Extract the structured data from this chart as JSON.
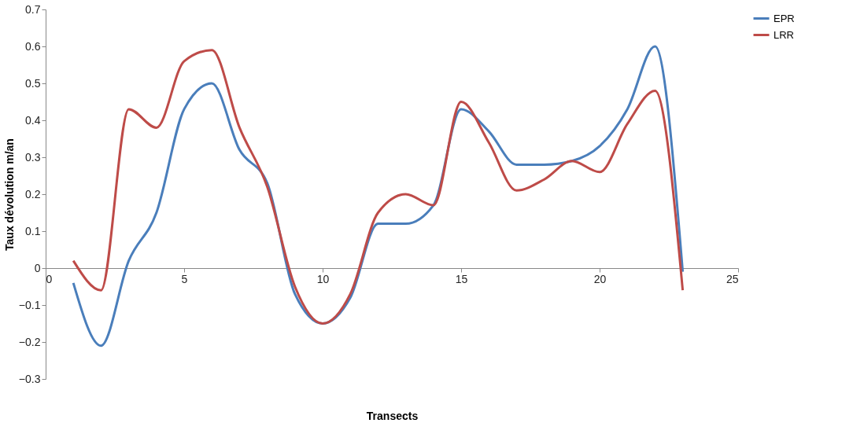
{
  "chart_data": {
    "type": "line",
    "xlabel": "Transects",
    "ylabel": "Taux dévolution m/an",
    "x": [
      1,
      2,
      3,
      4,
      5,
      6,
      7,
      8,
      9,
      10,
      11,
      12,
      13,
      14,
      15,
      16,
      17,
      18,
      19,
      20,
      21,
      22,
      23
    ],
    "series": [
      {
        "name": "EPR",
        "color": "#4a7ebb",
        "values": [
          -0.04,
          -0.21,
          0.02,
          0.15,
          0.43,
          0.5,
          0.32,
          0.23,
          -0.07,
          -0.15,
          -0.08,
          0.12,
          0.12,
          0.17,
          0.43,
          0.37,
          0.28,
          0.28,
          0.29,
          0.33,
          0.43,
          0.6,
          -0.01
        ]
      },
      {
        "name": "LRR",
        "color": "#be4b48",
        "values": [
          0.02,
          -0.06,
          0.43,
          0.38,
          0.56,
          0.59,
          0.38,
          0.22,
          -0.05,
          -0.15,
          -0.07,
          0.15,
          0.2,
          0.17,
          0.45,
          0.34,
          0.21,
          0.24,
          0.29,
          0.26,
          0.39,
          0.48,
          -0.06
        ]
      }
    ],
    "xlim": [
      0,
      25
    ],
    "xticks": [
      0,
      5,
      10,
      15,
      20,
      25
    ],
    "ylim": [
      -0.3,
      0.7
    ],
    "yticks": [
      -0.3,
      -0.2,
      -0.1,
      0,
      0.1,
      0.2,
      0.3,
      0.4,
      0.5,
      0.6,
      0.7
    ],
    "grid": false,
    "legend": "right",
    "marker": "none",
    "line_style": "solid"
  }
}
